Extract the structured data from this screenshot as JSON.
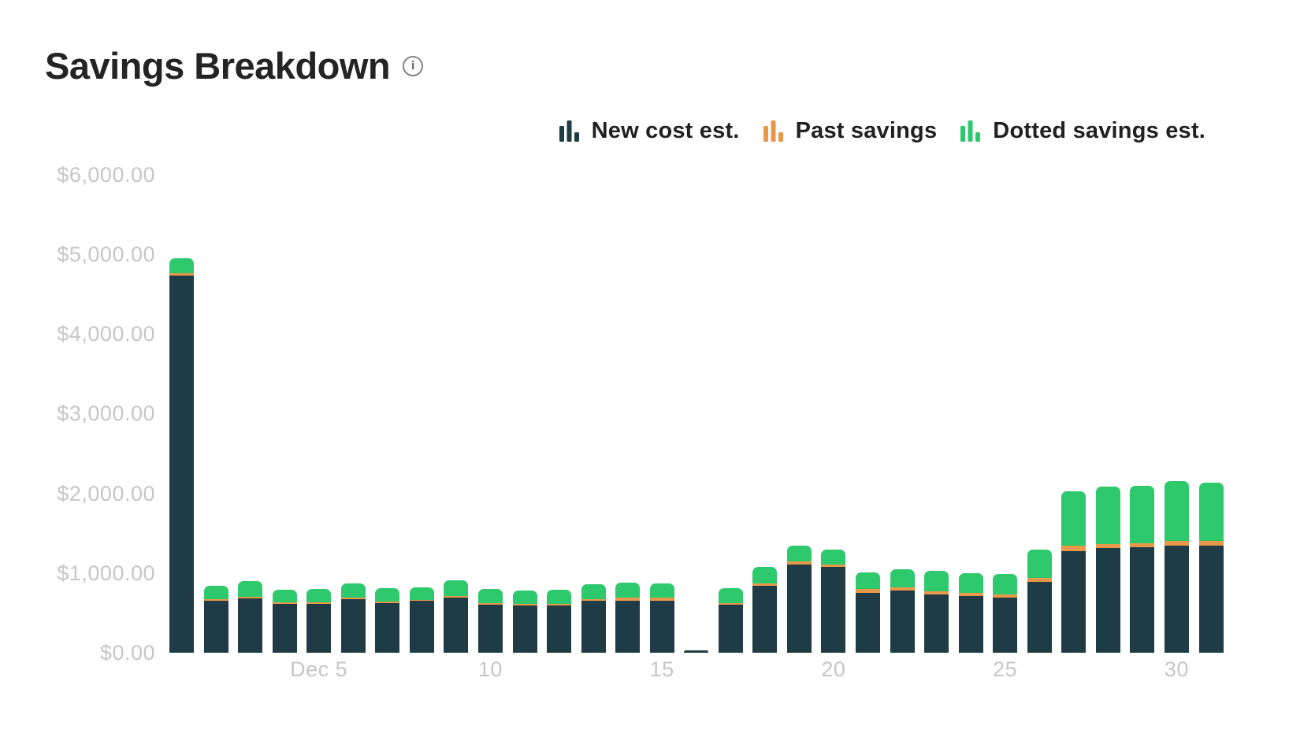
{
  "header": {
    "title": "Savings Breakdown",
    "info_icon": {
      "name": "info-icon",
      "glyph": "i"
    }
  },
  "chart_data": {
    "type": "bar",
    "stacked": true,
    "title": "Savings Breakdown",
    "xlabel": "",
    "ylabel": "",
    "x_unit": "day of December",
    "ylim": [
      0,
      6000
    ],
    "grid": false,
    "legend_position": "top-right",
    "categories": [
      "Dec 1",
      "Dec 2",
      "Dec 3",
      "Dec 4",
      "Dec 5",
      "Dec 6",
      "Dec 7",
      "Dec 8",
      "Dec 9",
      "Dec 10",
      "Dec 11",
      "Dec 12",
      "Dec 13",
      "Dec 14",
      "Dec 15",
      "Dec 16",
      "Dec 17",
      "Dec 18",
      "Dec 19",
      "Dec 20",
      "Dec 21",
      "Dec 22",
      "Dec 23",
      "Dec 24",
      "Dec 25",
      "Dec 26",
      "Dec 27",
      "Dec 28",
      "Dec 29",
      "Dec 30",
      "Dec 31"
    ],
    "stack_order_bottom_to_top": [
      "New cost est.",
      "Past savings",
      "Dotted savings est."
    ],
    "series": [
      {
        "name": "New cost est.",
        "color": "#1f3b45",
        "values": [
          4730,
          650,
          680,
          610,
          615,
          670,
          620,
          650,
          690,
          600,
          595,
          595,
          650,
          650,
          650,
          30,
          600,
          840,
          1105,
          1075,
          750,
          780,
          730,
          710,
          690,
          890,
          1275,
          1315,
          1325,
          1345,
          1345
        ]
      },
      {
        "name": "Past savings",
        "color": "#e9984a",
        "values": [
          30,
          20,
          20,
          20,
          20,
          20,
          20,
          15,
          20,
          20,
          20,
          20,
          25,
          40,
          40,
          0,
          25,
          25,
          40,
          30,
          50,
          40,
          40,
          45,
          45,
          45,
          65,
          50,
          50,
          60,
          60
        ]
      },
      {
        "name": "Dotted savings est.",
        "color": "#2fc96d",
        "values": [
          190,
          170,
          200,
          160,
          165,
          180,
          170,
          155,
          200,
          180,
          165,
          175,
          185,
          190,
          180,
          0,
          185,
          215,
          200,
          190,
          210,
          225,
          260,
          245,
          255,
          360,
          685,
          720,
          720,
          750,
          730
        ]
      }
    ],
    "y_ticks": [
      {
        "value": 0,
        "label": "$0.00"
      },
      {
        "value": 1000,
        "label": "$1,000.00"
      },
      {
        "value": 2000,
        "label": "$2,000.00"
      },
      {
        "value": 3000,
        "label": "$3,000.00"
      },
      {
        "value": 4000,
        "label": "$4,000.00"
      },
      {
        "value": 5000,
        "label": "$5,000.00"
      },
      {
        "value": 6000,
        "label": "$6,000.00"
      }
    ],
    "x_ticks": [
      {
        "day": 5,
        "label": "Dec 5"
      },
      {
        "day": 10,
        "label": "10"
      },
      {
        "day": 15,
        "label": "15"
      },
      {
        "day": 20,
        "label": "20"
      },
      {
        "day": 25,
        "label": "25"
      },
      {
        "day": 30,
        "label": "30"
      }
    ]
  },
  "colors": {
    "background": "#ffffff",
    "title_text": "#242424",
    "legend_text": "#202020",
    "axis_label": "#c6c6c6",
    "info_icon": "#858585"
  }
}
